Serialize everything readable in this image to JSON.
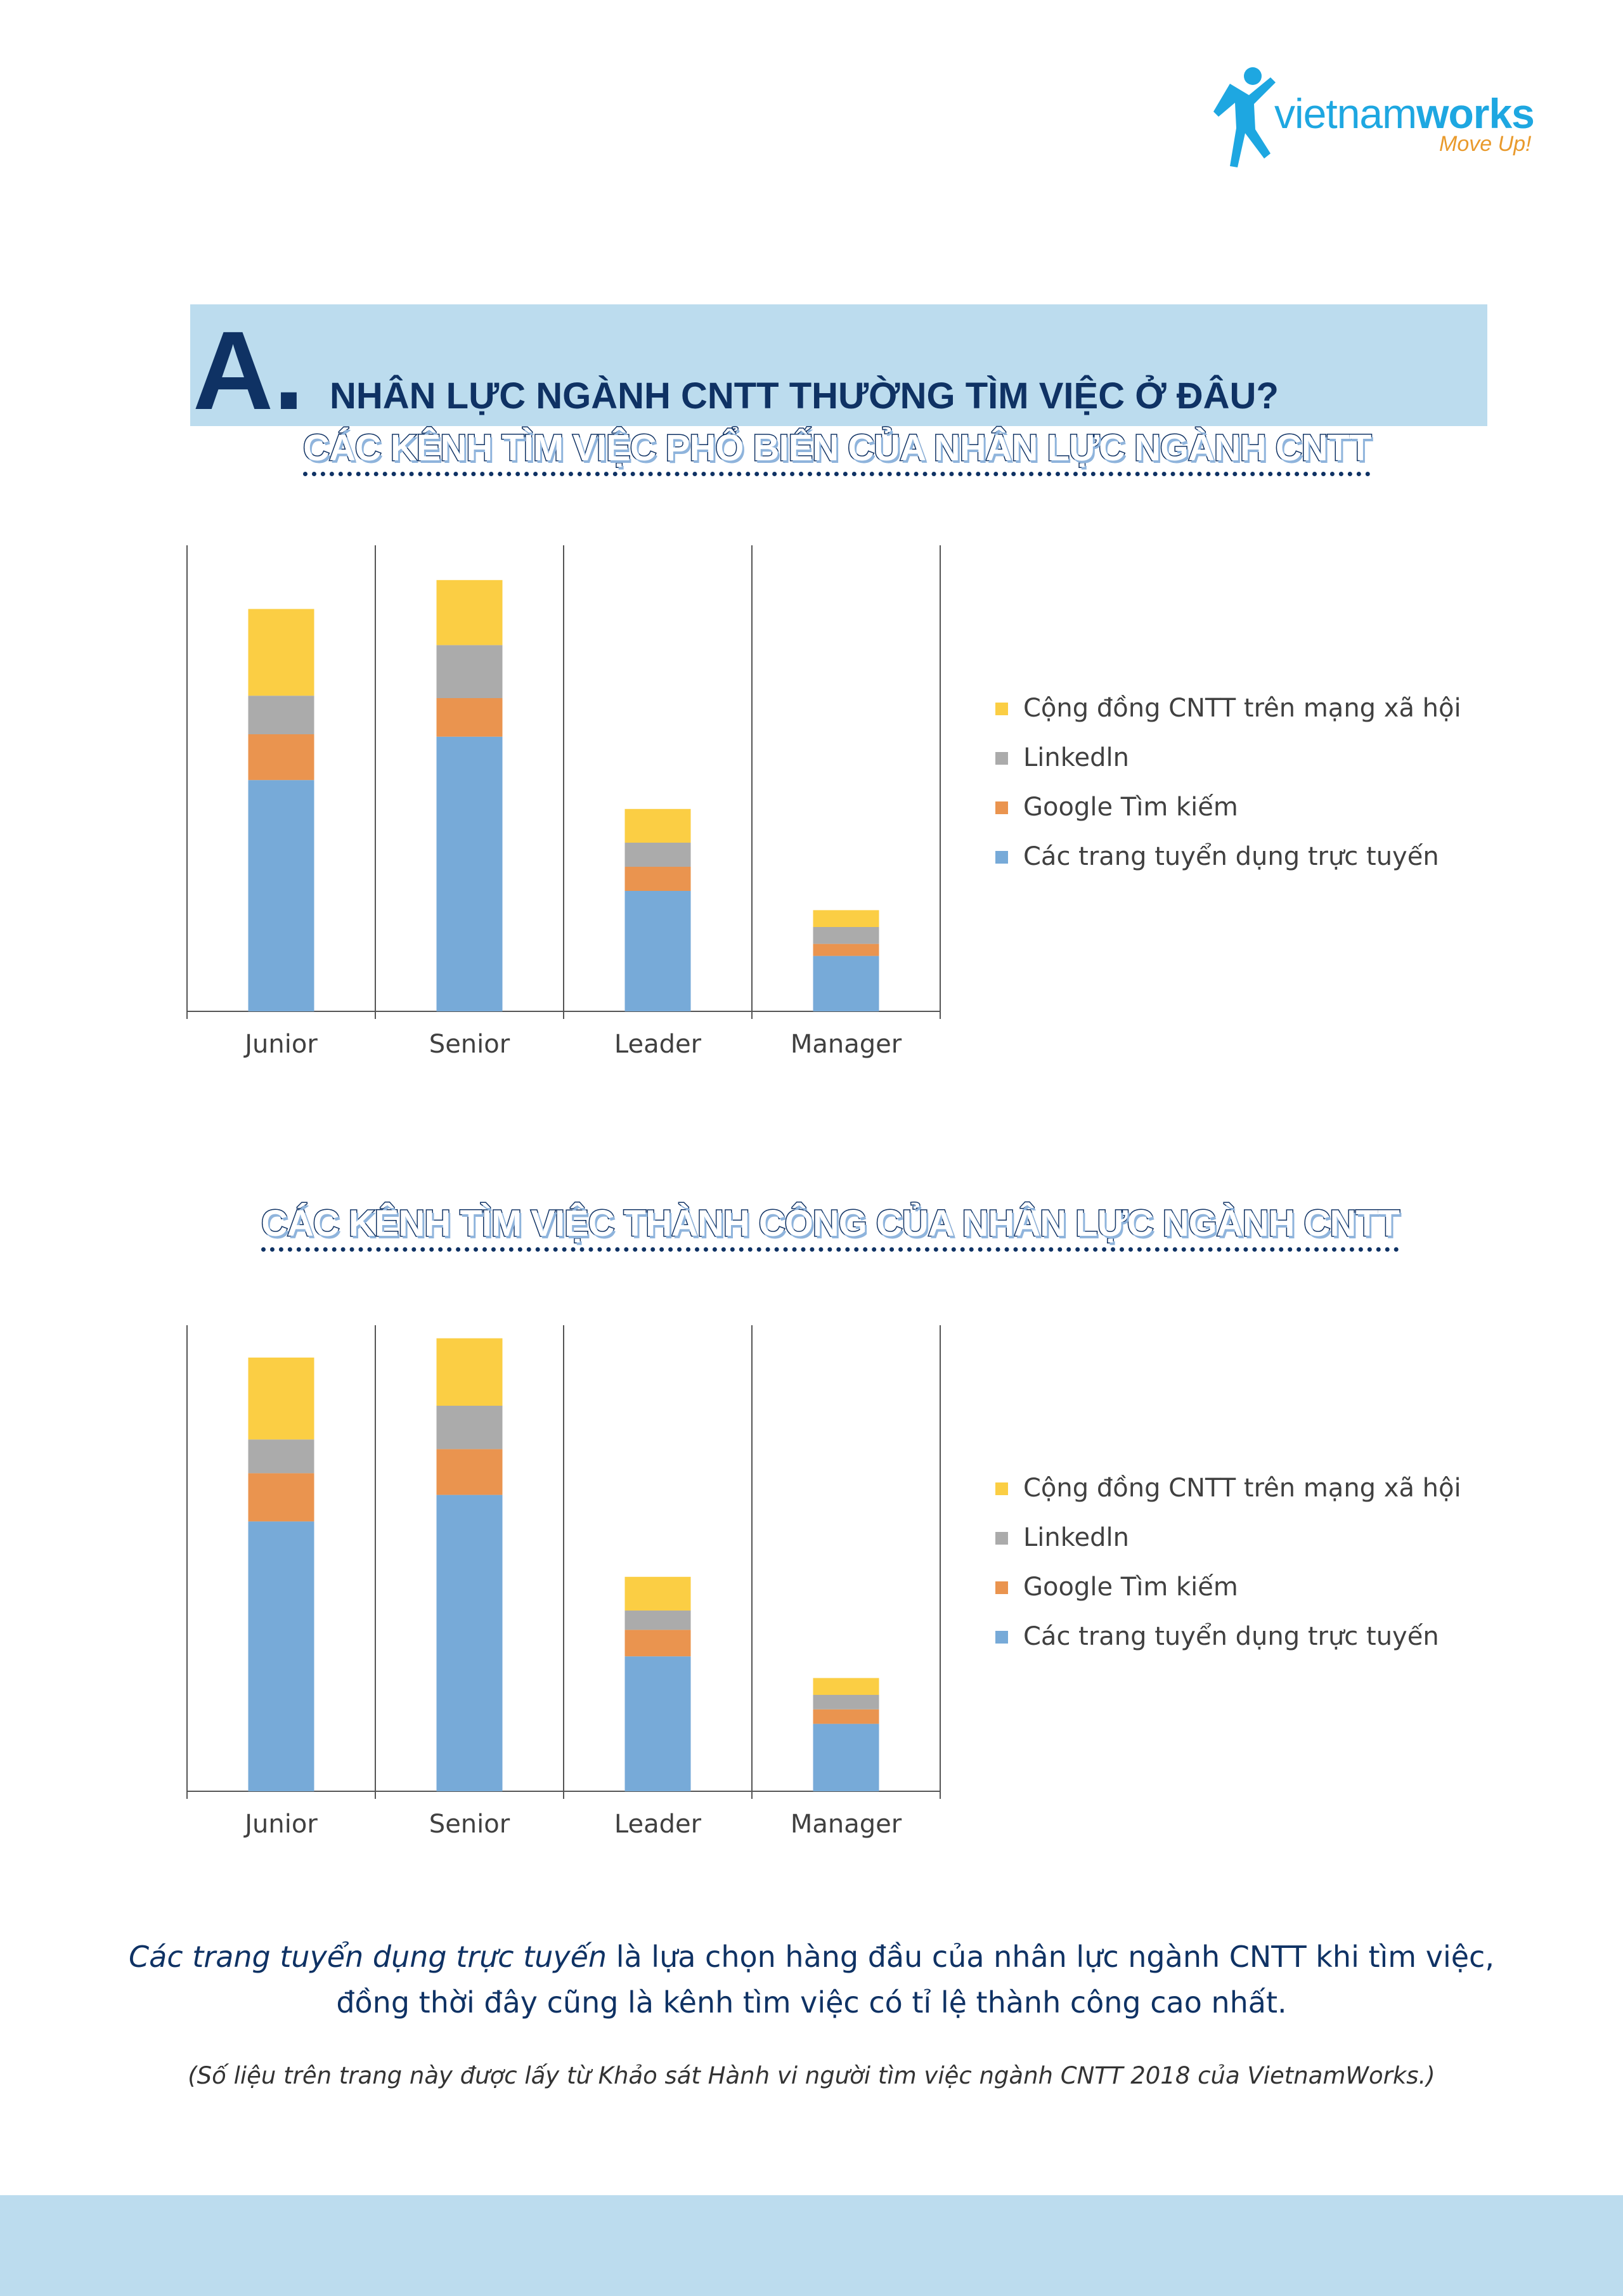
{
  "logo": {
    "word_light": "vietnam",
    "word_bold": "works",
    "tagline": "Move Up!"
  },
  "section": {
    "letter": "A.",
    "title": "NHÂN LỰC NGÀNH CNTT THƯỜNG TÌM VIỆC Ở ĐÂU?"
  },
  "colors": {
    "online": "#77aad8",
    "google": "#ea944f",
    "linkedin": "#ababab",
    "community": "#fbce44",
    "navy": "#0f3264",
    "band": "#bcdcee"
  },
  "chart_data": [
    {
      "type": "bar",
      "stacked": true,
      "title": "CÁC KÊNH TÌM VIỆC PHỔ BIẾN CỦA NHÂN LỰC NGÀNH CNTT",
      "categories": [
        "Junior",
        "Senior",
        "Leader",
        "Manager"
      ],
      "series": [
        {
          "name": "Các trang tuyển dụng trực tuyến",
          "color": "#77aad8",
          "values": [
            48,
            57,
            25,
            11.5
          ]
        },
        {
          "name": "Google Tìm kiếm",
          "color": "#ea944f",
          "values": [
            9.5,
            8,
            5,
            2.5
          ]
        },
        {
          "name": "Linkedln",
          "color": "#ababab",
          "values": [
            8,
            11,
            5,
            3.5
          ]
        },
        {
          "name": "Cộng đồng CNTT trên mạng xã hội",
          "color": "#fbce44",
          "values": [
            18,
            13.5,
            7,
            3.5
          ]
        }
      ],
      "ylim": [
        0,
        100
      ],
      "grid": false,
      "legend": "right"
    },
    {
      "type": "bar",
      "stacked": true,
      "title": "CÁC KÊNH TÌM VIỆC THÀNH CÔNG CỦA NHÂN LỰC NGÀNH CNTT",
      "categories": [
        "Junior",
        "Senior",
        "Leader",
        "Manager"
      ],
      "series": [
        {
          "name": "Các trang tuyển dụng trực tuyến",
          "color": "#77aad8",
          "values": [
            56,
            61.5,
            28,
            14
          ]
        },
        {
          "name": "Google Tìm kiếm",
          "color": "#ea944f",
          "values": [
            10,
            9.5,
            5.5,
            3
          ]
        },
        {
          "name": "Linkedln",
          "color": "#ababab",
          "values": [
            7,
            9,
            4,
            3
          ]
        },
        {
          "name": "Cộng đồng CNTT trên mạng xã hội",
          "color": "#fbce44",
          "values": [
            17,
            14,
            7,
            3.5
          ]
        }
      ],
      "ylim": [
        0,
        100
      ],
      "grid": false,
      "legend": "right"
    }
  ],
  "summary": {
    "highlight": "Các trang tuyển dụng trực tuyến",
    "line1_rest": " là lựa chọn hàng đầu của nhân lực ngành CNTT khi tìm việc,",
    "line2": "đồng thời đây cũng là kênh tìm việc có tỉ lệ thành công cao nhất."
  },
  "source": "(Số liệu trên trang này được lấy từ Khảo sát Hành vi người tìm việc ngành CNTT 2018 của VietnamWorks.)"
}
